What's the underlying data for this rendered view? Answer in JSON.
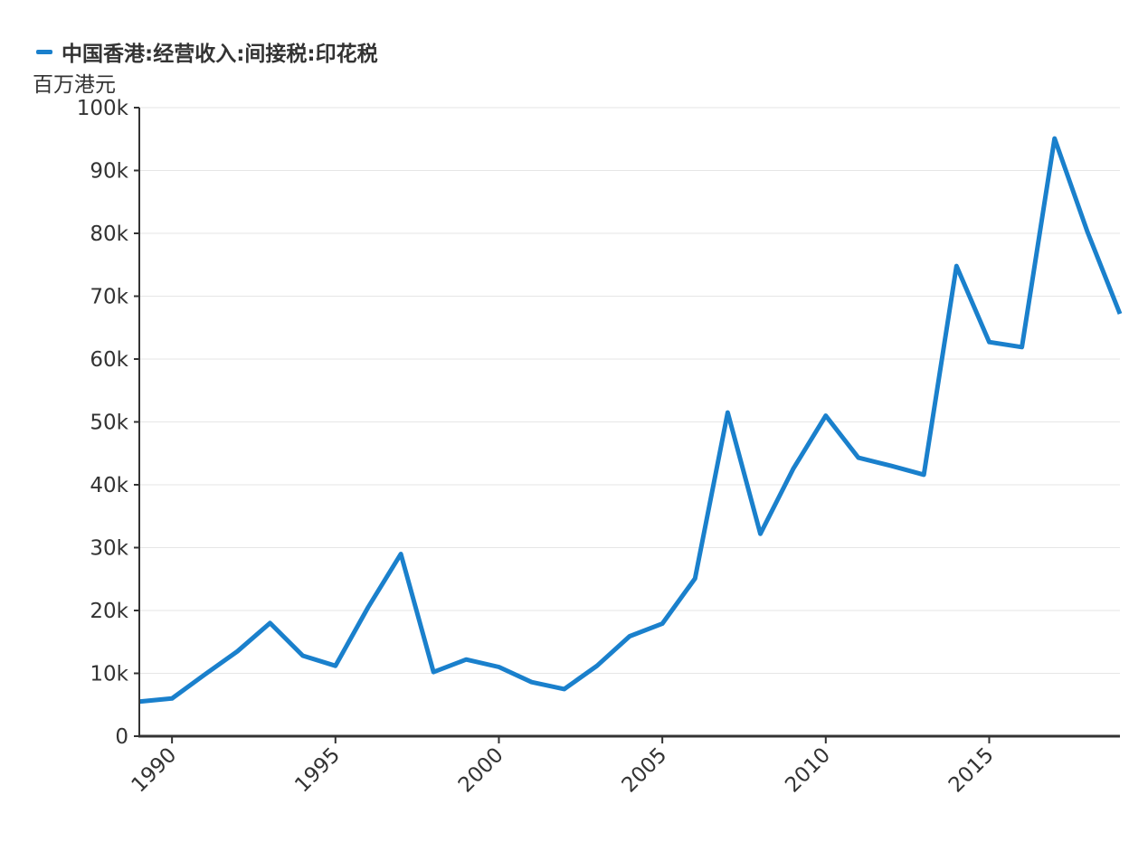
{
  "chart_data": {
    "type": "line",
    "legend": {
      "label": "中国香港:经营收入:间接税:印花税",
      "color": "#1a80cc",
      "position": "top-left"
    },
    "ylabel": "百万港元",
    "xlim": [
      1989,
      2019
    ],
    "ylim": [
      0,
      100000
    ],
    "x_ticks": [
      1990,
      1995,
      2000,
      2005,
      2010,
      2015
    ],
    "x_tick_labels": [
      "1990",
      "1995",
      "2000",
      "2005",
      "2010",
      "2015"
    ],
    "y_ticks": [
      0,
      10000,
      20000,
      30000,
      40000,
      50000,
      60000,
      70000,
      80000,
      90000,
      100000
    ],
    "y_tick_labels": [
      "0",
      "10k",
      "20k",
      "30k",
      "40k",
      "50k",
      "60k",
      "70k",
      "80k",
      "90k",
      "100k"
    ],
    "grid": true,
    "series": [
      {
        "name": "中国香港:经营收入:间接税:印花税",
        "color": "#1a80cc",
        "x": [
          1989,
          1990,
          1991,
          1992,
          1993,
          1994,
          1995,
          1996,
          1997,
          1998,
          1999,
          2000,
          2001,
          2002,
          2003,
          2004,
          2005,
          2006,
          2007,
          2008,
          2009,
          2010,
          2011,
          2012,
          2013,
          2014,
          2015,
          2016,
          2017,
          2018,
          2019
        ],
        "values": [
          5500,
          6000,
          9800,
          13500,
          18000,
          12800,
          11200,
          20500,
          29000,
          10200,
          12200,
          11000,
          8600,
          7500,
          11200,
          15900,
          17900,
          25100,
          51500,
          32200,
          42500,
          51000,
          44300,
          43000,
          41600,
          74800,
          62700,
          61900,
          95100,
          80300,
          67200
        ]
      }
    ],
    "style": {
      "axis_color": "#333333",
      "grid_color": "#e6e6e6",
      "text_color": "#333333"
    }
  }
}
